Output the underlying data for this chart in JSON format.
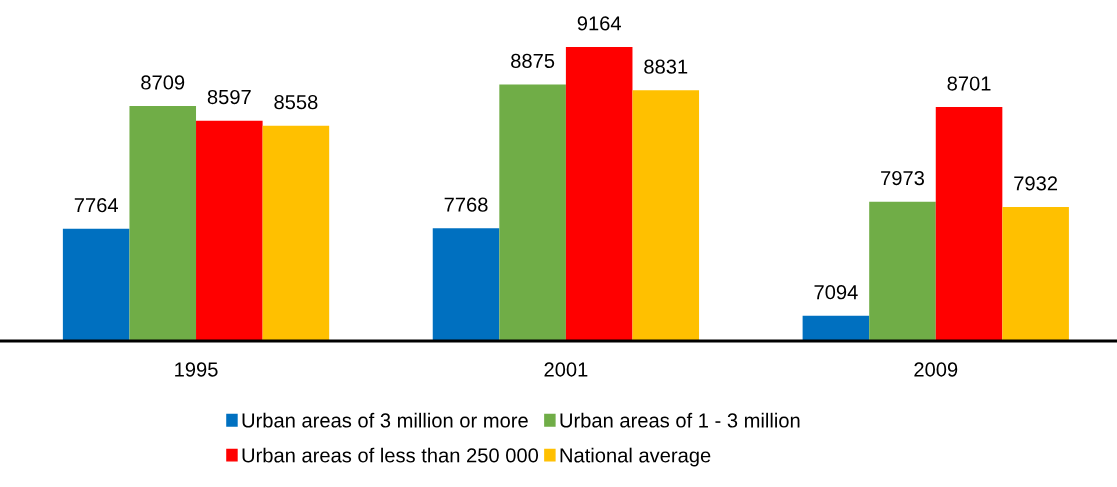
{
  "chart_data": {
    "type": "bar",
    "categories": [
      "1995",
      "2001",
      "2009"
    ],
    "series": [
      {
        "name": "Urban areas of 3 million or more",
        "color": "#0070c0",
        "values": [
          7764,
          7768,
          7094
        ]
      },
      {
        "name": "Urban areas of 1 - 3 million",
        "color": "#70ad47",
        "values": [
          8709,
          8875,
          7973
        ]
      },
      {
        "name": "Urban areas of less than 250 000",
        "color": "#ff0000",
        "values": [
          8597,
          9164,
          8701
        ]
      },
      {
        "name": "National average",
        "color": "#ffc000",
        "values": [
          8558,
          8831,
          7932
        ]
      }
    ],
    "ylim": [
      6900,
      9164
    ],
    "tick_labels": "x",
    "data_labels": true,
    "legend": "bottom",
    "grid": false
  }
}
